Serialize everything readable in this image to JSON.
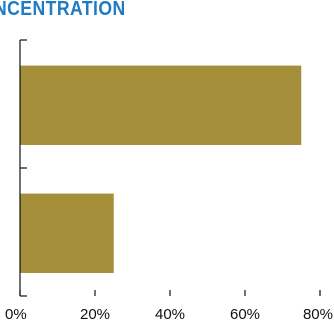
{
  "colors": {
    "title": "#1e7bc4",
    "bar": "#a68f3a",
    "axis": "#111111"
  },
  "chart_data": {
    "type": "bar",
    "orientation": "horizontal",
    "title": "NCENTRATION",
    "categories": [
      "",
      ""
    ],
    "values": [
      75,
      25
    ],
    "x_ticks": [
      "0%",
      "20%",
      "40%",
      "60%",
      "80%"
    ],
    "x_tick_values": [
      0,
      20,
      40,
      60,
      80
    ],
    "xlim": [
      0,
      80
    ],
    "xlabel": "",
    "ylabel": "",
    "grid": false,
    "legend": "none"
  }
}
